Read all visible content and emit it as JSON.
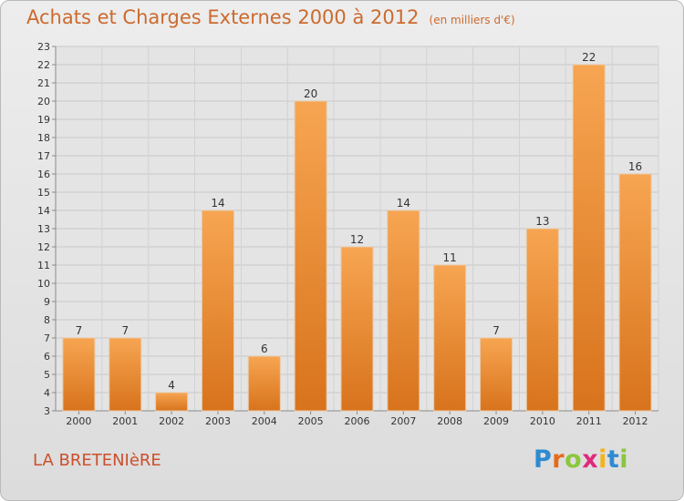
{
  "header": {
    "title": "Achats et Charges Externes 2000 à 2012",
    "unit": "(en milliers d'€)"
  },
  "footer": {
    "commune": "LA BRETENIèRE",
    "brand": {
      "letters": [
        "P",
        "r",
        "o",
        "x",
        "i",
        "t",
        "i"
      ]
    }
  },
  "colors": {
    "title": "#cc6a2d",
    "bar_top": "#f7a552",
    "bar_bottom": "#d8731c",
    "background": "#e6e6e6"
  },
  "chart_data": {
    "type": "bar",
    "categories": [
      "2000",
      "2001",
      "2002",
      "2003",
      "2004",
      "2005",
      "2006",
      "2007",
      "2008",
      "2009",
      "2010",
      "2011",
      "2012"
    ],
    "values": [
      7,
      7,
      4,
      14,
      6,
      20,
      12,
      14,
      11,
      7,
      13,
      22,
      16
    ],
    "data_labels": [
      "7",
      "7",
      "4",
      "14",
      "6",
      "20",
      "12",
      "14",
      "11",
      "7",
      "13",
      "22",
      "16"
    ],
    "title": "Achats et Charges Externes 2000 à 2012",
    "xlabel": "",
    "ylabel": "",
    "ylim": [
      3,
      23
    ],
    "yticks": [
      "3",
      "4",
      "5",
      "6",
      "7",
      "8",
      "9",
      "10",
      "11",
      "12",
      "13",
      "14",
      "15",
      "16",
      "17",
      "18",
      "19",
      "20",
      "21",
      "22",
      "23"
    ],
    "grid": true,
    "legend": "none"
  }
}
